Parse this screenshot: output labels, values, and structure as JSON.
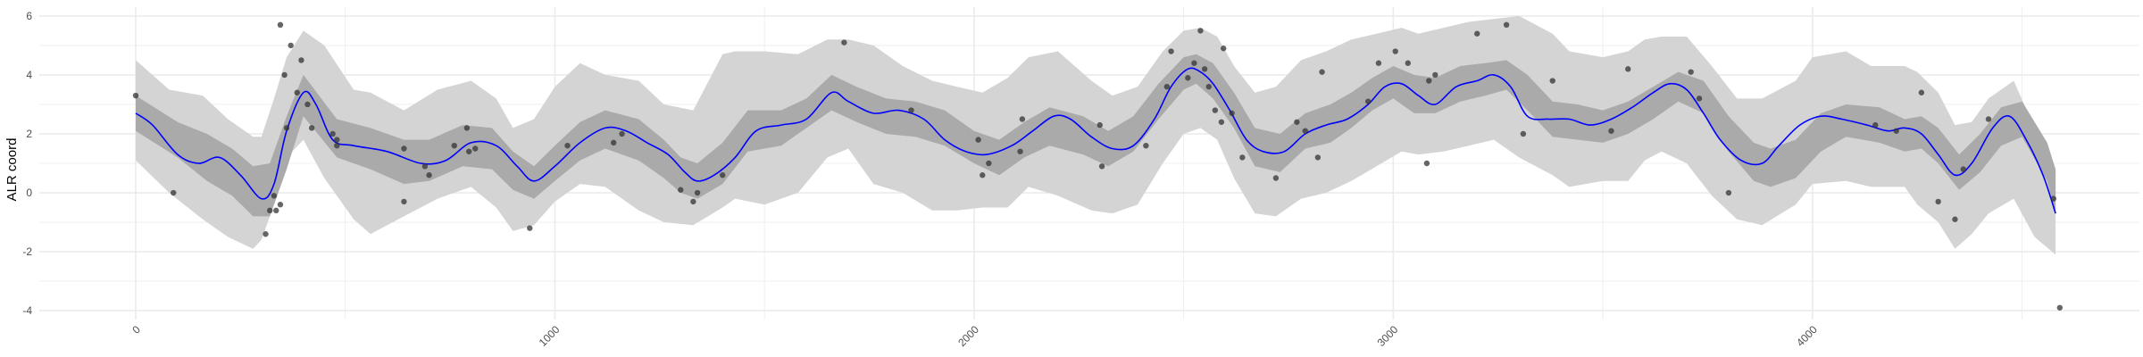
{
  "chart_data": {
    "type": "line",
    "title": "",
    "xlabel": "",
    "ylabel": "ALR coord",
    "xlim": [
      -230,
      4780
    ],
    "ylim": [
      -4.3,
      6.3
    ],
    "grid": true,
    "x_ticks": [
      0,
      1000,
      2000,
      3000,
      4000
    ],
    "x_tick_labels": [
      "0",
      "1000",
      "2000",
      "3000",
      "4000"
    ],
    "x_minor": [
      500,
      1500,
      2500,
      3500,
      4500
    ],
    "y_ticks": [
      -4,
      -2,
      0,
      2,
      4,
      6
    ],
    "y_tick_labels": [
      "-4",
      "-2",
      "0",
      "2",
      "4",
      "6"
    ],
    "y_minor": [
      -3,
      -1,
      1,
      3,
      5
    ],
    "colors": {
      "mean_line": "#0000ff",
      "outer_band": "#d4d4d4",
      "inner_band": "#aaaaaa",
      "points": "#333333",
      "grid": "#ebebeb"
    },
    "series": [
      {
        "kind": "outer_band",
        "x": [
          0,
          80,
          160,
          220,
          280,
          300,
          330,
          360,
          400,
          450,
          520,
          560,
          640,
          720,
          800,
          860,
          900,
          950,
          1000,
          1060,
          1120,
          1200,
          1260,
          1330,
          1400,
          1430,
          1500,
          1580,
          1650,
          1700,
          1760,
          1830,
          1900,
          1960,
          2020,
          2080,
          2130,
          2200,
          2280,
          2330,
          2390,
          2450,
          2500,
          2540,
          2580,
          2620,
          2670,
          2720,
          2780,
          2840,
          2900,
          2960,
          3020,
          3060,
          3120,
          3180,
          3240,
          3300,
          3380,
          3420,
          3500,
          3560,
          3600,
          3640,
          3700,
          3760,
          3820,
          3880,
          3960,
          4000,
          4080,
          4140,
          4220,
          4250,
          4300,
          4340,
          4380,
          4420,
          4480,
          4530,
          4580
        ],
        "upper": [
          4.5,
          3.5,
          3.3,
          2.5,
          1.9,
          1.9,
          3.2,
          4.6,
          5.5,
          5.0,
          3.5,
          3.4,
          2.8,
          3.5,
          3.8,
          3.2,
          2.2,
          2.5,
          3.6,
          4.4,
          4.0,
          3.8,
          3.0,
          2.8,
          4.7,
          4.8,
          4.8,
          4.7,
          5.2,
          5.2,
          5.0,
          4.3,
          3.8,
          3.6,
          3.4,
          3.9,
          4.6,
          4.8,
          3.8,
          3.3,
          3.6,
          4.8,
          5.5,
          5.6,
          5.3,
          4.3,
          3.4,
          3.6,
          4.5,
          4.8,
          5.2,
          5.4,
          5.6,
          5.4,
          5.6,
          5.8,
          5.9,
          6.0,
          5.4,
          4.8,
          4.6,
          4.8,
          5.2,
          5.3,
          5.3,
          4.3,
          3.2,
          3.2,
          3.8,
          4.6,
          4.8,
          4.3,
          4.3,
          4.1,
          3.4,
          2.3,
          2.4,
          3.2,
          3.8,
          2.2,
          0.8
        ],
        "lower": [
          1.1,
          0.0,
          -0.9,
          -1.5,
          -1.9,
          -1.6,
          -0.4,
          1.2,
          1.8,
          0.5,
          -0.9,
          -1.4,
          -0.8,
          -0.2,
          0.2,
          -0.5,
          -1.3,
          -1.1,
          -0.3,
          0.3,
          0.2,
          -0.6,
          -1.0,
          -1.1,
          -0.5,
          -0.2,
          -0.4,
          0.0,
          1.2,
          1.5,
          0.3,
          0.0,
          -0.6,
          -0.6,
          -0.5,
          -0.5,
          0.2,
          -0.1,
          -0.6,
          -0.7,
          -0.4,
          1.0,
          2.0,
          2.2,
          1.8,
          0.5,
          -0.7,
          -0.8,
          -0.2,
          0.0,
          0.4,
          0.9,
          1.4,
          1.3,
          1.4,
          1.6,
          1.8,
          1.2,
          0.6,
          0.2,
          0.4,
          0.4,
          1.1,
          1.4,
          1.0,
          -0.1,
          -0.9,
          -1.1,
          -0.4,
          0.3,
          0.4,
          0.2,
          0.2,
          -0.4,
          -1.0,
          -1.9,
          -1.4,
          -0.7,
          -0.2,
          -1.5,
          -2.1
        ]
      },
      {
        "kind": "inner_band",
        "x": [
          0,
          100,
          170,
          230,
          280,
          320,
          360,
          400,
          480,
          560,
          640,
          700,
          780,
          850,
          900,
          950,
          1000,
          1060,
          1120,
          1200,
          1260,
          1300,
          1340,
          1400,
          1460,
          1540,
          1600,
          1660,
          1720,
          1790,
          1860,
          1930,
          2000,
          2060,
          2120,
          2180,
          2260,
          2320,
          2380,
          2440,
          2500,
          2530,
          2570,
          2620,
          2670,
          2730,
          2790,
          2850,
          2900,
          2950,
          3000,
          3050,
          3100,
          3160,
          3220,
          3270,
          3320,
          3380,
          3440,
          3500,
          3560,
          3620,
          3680,
          3740,
          3800,
          3860,
          3900,
          3960,
          4020,
          4080,
          4160,
          4220,
          4260,
          4300,
          4350,
          4400,
          4450,
          4500,
          4560,
          4580
        ],
        "upper": [
          3.3,
          2.4,
          2.0,
          1.5,
          0.9,
          1.0,
          2.6,
          4.0,
          2.5,
          2.2,
          1.8,
          1.8,
          2.3,
          2.2,
          1.4,
          0.9,
          1.6,
          2.4,
          2.8,
          2.5,
          1.8,
          1.2,
          1.0,
          1.7,
          2.8,
          2.8,
          3.2,
          4.0,
          3.6,
          3.2,
          3.1,
          2.8,
          2.1,
          1.8,
          2.4,
          2.9,
          2.6,
          2.1,
          2.6,
          3.7,
          4.6,
          4.7,
          4.4,
          3.4,
          2.2,
          2.0,
          2.7,
          3.0,
          3.4,
          3.9,
          4.3,
          4.0,
          3.9,
          4.3,
          4.4,
          4.5,
          4.0,
          3.1,
          3.0,
          2.8,
          3.1,
          3.6,
          4.1,
          3.8,
          2.6,
          1.7,
          1.5,
          1.8,
          2.7,
          3.0,
          2.9,
          2.5,
          2.6,
          2.2,
          1.3,
          2.0,
          2.9,
          3.1,
          1.7,
          0.8
        ],
        "lower": [
          2.1,
          1.2,
          0.4,
          -0.1,
          -0.8,
          -0.8,
          0.8,
          2.6,
          1.2,
          0.8,
          0.3,
          0.4,
          0.9,
          0.8,
          0.1,
          -0.2,
          0.4,
          1.1,
          1.5,
          1.1,
          0.5,
          0.0,
          -0.2,
          0.3,
          1.4,
          1.6,
          2.2,
          2.8,
          2.4,
          2.0,
          1.9,
          1.6,
          1.0,
          0.6,
          1.2,
          1.6,
          1.3,
          0.9,
          1.4,
          2.5,
          3.5,
          3.7,
          3.2,
          2.2,
          0.9,
          0.7,
          1.5,
          1.7,
          2.2,
          2.8,
          3.2,
          2.7,
          2.7,
          3.1,
          3.3,
          3.5,
          2.8,
          1.9,
          1.8,
          1.7,
          2.0,
          2.5,
          3.1,
          2.7,
          1.4,
          0.4,
          0.2,
          0.5,
          1.4,
          1.9,
          1.7,
          1.4,
          1.5,
          1.0,
          0.1,
          0.7,
          1.6,
          1.9,
          0.4,
          -0.7
        ]
      },
      {
        "kind": "mean_line",
        "x": [
          0,
          40,
          100,
          150,
          200,
          250,
          300,
          330,
          360,
          400,
          430,
          470,
          520,
          600,
          680,
          740,
          800,
          860,
          910,
          950,
          1000,
          1060,
          1120,
          1170,
          1220,
          1270,
          1310,
          1340,
          1380,
          1430,
          1480,
          1540,
          1600,
          1660,
          1700,
          1760,
          1820,
          1880,
          1930,
          1980,
          2030,
          2090,
          2140,
          2190,
          2230,
          2280,
          2330,
          2380,
          2430,
          2470,
          2510,
          2540,
          2570,
          2610,
          2650,
          2690,
          2740,
          2790,
          2840,
          2890,
          2940,
          2980,
          3020,
          3060,
          3100,
          3150,
          3200,
          3240,
          3280,
          3320,
          3370,
          3420,
          3470,
          3520,
          3570,
          3620,
          3660,
          3700,
          3740,
          3780,
          3830,
          3880,
          3920,
          3970,
          4020,
          4070,
          4130,
          4180,
          4220,
          4260,
          4300,
          4340,
          4380,
          4430,
          4470,
          4510,
          4550,
          4580
        ],
        "values": [
          2.7,
          2.3,
          1.3,
          1.0,
          1.2,
          0.6,
          -0.2,
          0.3,
          2.1,
          3.4,
          3.0,
          1.8,
          1.6,
          1.4,
          1.0,
          1.1,
          1.7,
          1.6,
          0.9,
          0.4,
          0.9,
          1.7,
          2.2,
          2.1,
          1.7,
          1.3,
          0.7,
          0.4,
          0.6,
          1.2,
          2.1,
          2.3,
          2.5,
          3.4,
          3.1,
          2.7,
          2.8,
          2.5,
          1.8,
          1.4,
          1.3,
          1.6,
          2.1,
          2.6,
          2.5,
          1.9,
          1.5,
          1.6,
          2.5,
          3.6,
          4.2,
          4.1,
          3.7,
          2.8,
          1.8,
          1.4,
          1.4,
          2.0,
          2.3,
          2.5,
          3.0,
          3.6,
          3.7,
          3.3,
          3.0,
          3.6,
          3.8,
          4.0,
          3.6,
          2.6,
          2.5,
          2.5,
          2.3,
          2.5,
          2.9,
          3.4,
          3.7,
          3.5,
          2.7,
          1.8,
          1.1,
          1.0,
          1.6,
          2.3,
          2.6,
          2.5,
          2.3,
          2.1,
          2.2,
          2.0,
          1.3,
          0.6,
          1.0,
          2.2,
          2.6,
          1.8,
          0.6,
          -0.7
        ]
      }
    ],
    "points": [
      {
        "x": 0,
        "y": 3.3
      },
      {
        "x": 90,
        "y": 0.0
      },
      {
        "x": 310,
        "y": -1.4
      },
      {
        "x": 320,
        "y": -0.6
      },
      {
        "x": 330,
        "y": -0.1
      },
      {
        "x": 335,
        "y": -0.6
      },
      {
        "x": 345,
        "y": -0.4
      },
      {
        "x": 345,
        "y": 5.7
      },
      {
        "x": 355,
        "y": 4.0
      },
      {
        "x": 360,
        "y": 2.2
      },
      {
        "x": 370,
        "y": 5.0
      },
      {
        "x": 385,
        "y": 3.4
      },
      {
        "x": 395,
        "y": 4.5
      },
      {
        "x": 410,
        "y": 3.0
      },
      {
        "x": 420,
        "y": 2.2
      },
      {
        "x": 470,
        "y": 2.0
      },
      {
        "x": 480,
        "y": 1.8
      },
      {
        "x": 480,
        "y": 1.6
      },
      {
        "x": 640,
        "y": -0.3
      },
      {
        "x": 640,
        "y": 1.5
      },
      {
        "x": 690,
        "y": 0.9
      },
      {
        "x": 700,
        "y": 0.6
      },
      {
        "x": 760,
        "y": 1.6
      },
      {
        "x": 790,
        "y": 2.2
      },
      {
        "x": 795,
        "y": 1.4
      },
      {
        "x": 810,
        "y": 1.5
      },
      {
        "x": 940,
        "y": -1.2
      },
      {
        "x": 1030,
        "y": 1.6
      },
      {
        "x": 1140,
        "y": 1.7
      },
      {
        "x": 1160,
        "y": 2.0
      },
      {
        "x": 1300,
        "y": 0.1
      },
      {
        "x": 1330,
        "y": -0.3
      },
      {
        "x": 1340,
        "y": 0.0
      },
      {
        "x": 1400,
        "y": 0.6
      },
      {
        "x": 1690,
        "y": 5.1
      },
      {
        "x": 1850,
        "y": 2.8
      },
      {
        "x": 2010,
        "y": 1.8
      },
      {
        "x": 2020,
        "y": 0.6
      },
      {
        "x": 2035,
        "y": 1.0
      },
      {
        "x": 2110,
        "y": 1.4
      },
      {
        "x": 2115,
        "y": 2.5
      },
      {
        "x": 2300,
        "y": 2.3
      },
      {
        "x": 2305,
        "y": 0.9
      },
      {
        "x": 2410,
        "y": 1.6
      },
      {
        "x": 2460,
        "y": 3.6
      },
      {
        "x": 2470,
        "y": 4.8
      },
      {
        "x": 2510,
        "y": 3.9
      },
      {
        "x": 2525,
        "y": 4.4
      },
      {
        "x": 2540,
        "y": 5.5
      },
      {
        "x": 2550,
        "y": 4.2
      },
      {
        "x": 2560,
        "y": 3.6
      },
      {
        "x": 2575,
        "y": 2.8
      },
      {
        "x": 2590,
        "y": 2.4
      },
      {
        "x": 2595,
        "y": 4.9
      },
      {
        "x": 2615,
        "y": 2.7
      },
      {
        "x": 2640,
        "y": 1.2
      },
      {
        "x": 2720,
        "y": 0.5
      },
      {
        "x": 2770,
        "y": 2.4
      },
      {
        "x": 2790,
        "y": 2.1
      },
      {
        "x": 2820,
        "y": 1.2
      },
      {
        "x": 2830,
        "y": 4.1
      },
      {
        "x": 2940,
        "y": 3.1
      },
      {
        "x": 2965,
        "y": 4.4
      },
      {
        "x": 3005,
        "y": 4.8
      },
      {
        "x": 3035,
        "y": 4.4
      },
      {
        "x": 3080,
        "y": 1.0
      },
      {
        "x": 3085,
        "y": 3.8
      },
      {
        "x": 3100,
        "y": 4.0
      },
      {
        "x": 3200,
        "y": 5.4
      },
      {
        "x": 3270,
        "y": 5.7
      },
      {
        "x": 3310,
        "y": 2.0
      },
      {
        "x": 3380,
        "y": 3.8
      },
      {
        "x": 3520,
        "y": 2.1
      },
      {
        "x": 3560,
        "y": 4.2
      },
      {
        "x": 3710,
        "y": 4.1
      },
      {
        "x": 3730,
        "y": 3.2
      },
      {
        "x": 3800,
        "y": 0.0
      },
      {
        "x": 4150,
        "y": 2.3
      },
      {
        "x": 4200,
        "y": 2.1
      },
      {
        "x": 4260,
        "y": 3.4
      },
      {
        "x": 4300,
        "y": -0.3
      },
      {
        "x": 4340,
        "y": -0.9
      },
      {
        "x": 4360,
        "y": 0.8
      },
      {
        "x": 4420,
        "y": 2.5
      },
      {
        "x": 4575,
        "y": -0.2
      },
      {
        "x": 4590,
        "y": -3.9
      }
    ]
  }
}
